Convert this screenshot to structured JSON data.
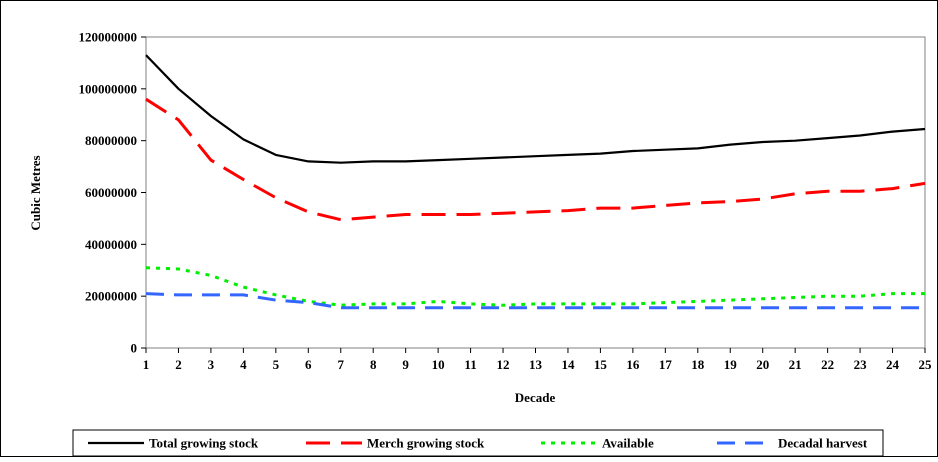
{
  "chart_data": {
    "type": "line",
    "title": "",
    "xlabel": "Decade",
    "ylabel": "Cubic Metres",
    "x": [
      1,
      2,
      3,
      4,
      5,
      6,
      7,
      8,
      9,
      10,
      11,
      12,
      13,
      14,
      15,
      16,
      17,
      18,
      19,
      20,
      21,
      22,
      23,
      24,
      25
    ],
    "ylim": [
      0,
      120000000
    ],
    "yticks": [
      "0",
      "20000000",
      "40000000",
      "60000000",
      "80000000",
      "100000000",
      "120000000"
    ],
    "grid": false,
    "legend_position": "bottom",
    "series": [
      {
        "name": "Total growing stock",
        "color": "#000000",
        "dash": "solid",
        "values": [
          113000000,
          100000000,
          89500000,
          80500000,
          74500000,
          72000000,
          71500000,
          72000000,
          72000000,
          72500000,
          73000000,
          73500000,
          74000000,
          74500000,
          75000000,
          76000000,
          76500000,
          77000000,
          78500000,
          79500000,
          80000000,
          81000000,
          82000000,
          83500000,
          84500000
        ]
      },
      {
        "name": "Merch growing stock",
        "color": "#ff0000",
        "dash": "long-dash",
        "values": [
          96000000,
          88000000,
          72500000,
          65000000,
          58000000,
          52500000,
          49500000,
          50500000,
          51500000,
          51500000,
          51500000,
          52000000,
          52500000,
          53000000,
          54000000,
          54000000,
          55000000,
          56000000,
          56500000,
          57500000,
          59500000,
          60500000,
          60500000,
          61500000,
          63500000
        ]
      },
      {
        "name": "Available",
        "color": "#00ee00",
        "dash": "dot",
        "values": [
          31000000,
          30500000,
          28000000,
          23500000,
          20500000,
          18000000,
          16500000,
          17000000,
          17000000,
          18000000,
          17000000,
          16500000,
          17000000,
          17000000,
          17000000,
          17000000,
          17500000,
          18000000,
          18500000,
          19000000,
          19500000,
          20000000,
          20000000,
          21000000,
          21000000
        ]
      },
      {
        "name": "Decadal harvest",
        "color": "#3366ff",
        "dash": "dash",
        "values": [
          21000000,
          20500000,
          20500000,
          20500000,
          18500000,
          17500000,
          15500000,
          15500000,
          15500000,
          15500000,
          15500000,
          15500000,
          15500000,
          15500000,
          15500000,
          15500000,
          15500000,
          15500000,
          15500000,
          15500000,
          15500000,
          15500000,
          15500000,
          15500000,
          15500000
        ]
      }
    ]
  }
}
